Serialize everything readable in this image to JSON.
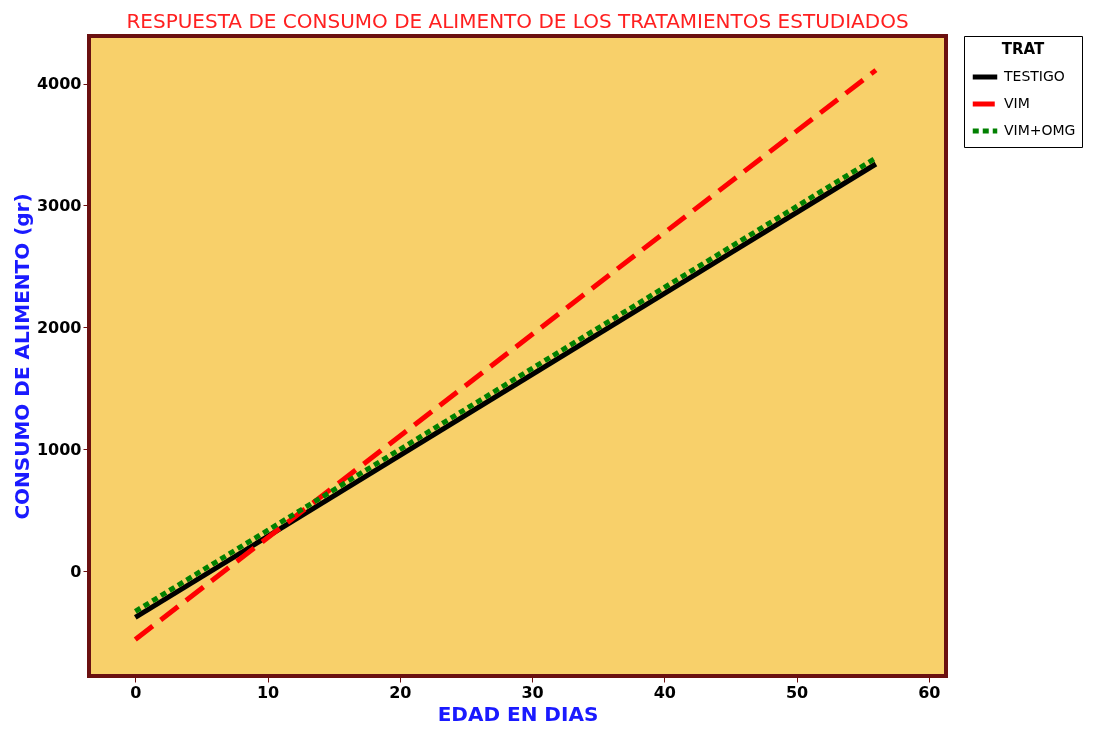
{
  "chart_data": {
    "type": "line",
    "title": "RESPUESTA DE CONSUMO DE ALIMENTO DE LOS TRATAMIENTOS ESTUDIADOS",
    "xlabel": "EDAD EN DIAS",
    "ylabel": "CONSUMO DE ALIMENTO (gr)",
    "legend_title": "TRAT",
    "legend": "top right",
    "grid": false,
    "x": [
      0,
      56
    ],
    "series": [
      {
        "name": "TESTIGO",
        "color": "#000000",
        "line_style": "solid",
        "values": [
          -380,
          3340
        ]
      },
      {
        "name": "VIM",
        "color": "#ff0000",
        "line_style": "dashed",
        "values": [
          -560,
          4110
        ]
      },
      {
        "name": "VIM+OMG",
        "color": "#008000",
        "line_style": "dotted",
        "values": [
          -330,
          3390
        ]
      }
    ],
    "xlim": [
      -3.5,
      61.3
    ],
    "ylim": [
      -860,
      4390
    ],
    "xticks": [
      0,
      10,
      20,
      30,
      40,
      50,
      60
    ],
    "yticks": [
      0,
      1000,
      2000,
      3000,
      4000
    ]
  }
}
